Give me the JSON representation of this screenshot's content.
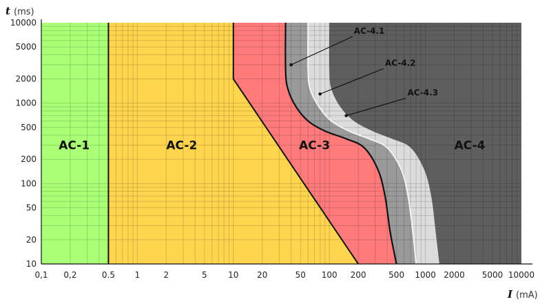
{
  "chart_data": {
    "type": "area",
    "title": "",
    "x_scale": "log",
    "y_scale": "log",
    "xlim": [
      0.1,
      10000
    ],
    "ylim": [
      10,
      10000
    ],
    "grid": true,
    "xlabel": {
      "symbol": "I",
      "unit": "(mA)"
    },
    "ylabel": {
      "symbol": "t",
      "unit": "(ms)"
    },
    "x_ticks": [
      {
        "value": 0.1,
        "label": "0,1"
      },
      {
        "value": 0.2,
        "label": "0,2"
      },
      {
        "value": 0.5,
        "label": "0.5"
      },
      {
        "value": 1,
        "label": "1"
      },
      {
        "value": 2,
        "label": "2"
      },
      {
        "value": 5,
        "label": "5"
      },
      {
        "value": 10,
        "label": "10"
      },
      {
        "value": 20,
        "label": "20"
      },
      {
        "value": 50,
        "label": "50"
      },
      {
        "value": 100,
        "label": "100"
      },
      {
        "value": 200,
        "label": "200"
      },
      {
        "value": 500,
        "label": "500"
      },
      {
        "value": 1000,
        "label": "1000"
      },
      {
        "value": 2000,
        "label": "2000"
      },
      {
        "value": 5000,
        "label": "5000"
      },
      {
        "value": 10000,
        "label": "10000"
      }
    ],
    "y_ticks": [
      {
        "value": 10,
        "label": "10"
      },
      {
        "value": 20,
        "label": "20"
      },
      {
        "value": 50,
        "label": "50"
      },
      {
        "value": 100,
        "label": "100"
      },
      {
        "value": 200,
        "label": "200"
      },
      {
        "value": 500,
        "label": "500"
      },
      {
        "value": 1000,
        "label": "1000"
      },
      {
        "value": 2000,
        "label": "2000"
      },
      {
        "value": 5000,
        "label": "5000"
      },
      {
        "value": 10000,
        "label": "10000"
      }
    ],
    "zones": [
      {
        "label": "AC-1",
        "color": "#aaff77",
        "label_at": [
          0.22,
          300
        ]
      },
      {
        "label": "AC-2",
        "color": "#ffd54f",
        "label_at": [
          2.9,
          300
        ]
      },
      {
        "label": "AC-3",
        "color": "#ff7b7b",
        "label_at": [
          70,
          300
        ]
      },
      {
        "label": "AC-4",
        "color": "#5e5e5e",
        "label_at": [
          2900,
          300
        ]
      }
    ],
    "boundaries": {
      "a": [
        [
          0.5,
          10
        ],
        [
          0.5,
          10000
        ]
      ],
      "b": [
        [
          10,
          10000
        ],
        [
          10,
          2000
        ],
        [
          200,
          10
        ]
      ],
      "c1": [
        [
          35,
          10000
        ],
        [
          35,
          2600
        ],
        [
          37,
          1500
        ],
        [
          45,
          900
        ],
        [
          60,
          600
        ],
        [
          90,
          450
        ],
        [
          150,
          360
        ],
        [
          230,
          280
        ],
        [
          320,
          150
        ],
        [
          380,
          70
        ],
        [
          430,
          25
        ],
        [
          500,
          10
        ]
      ],
      "c2": [
        [
          60,
          10000
        ],
        [
          60,
          2600
        ],
        [
          63,
          1500
        ],
        [
          78,
          900
        ],
        [
          105,
          600
        ],
        [
          160,
          450
        ],
        [
          260,
          360
        ],
        [
          400,
          280
        ],
        [
          560,
          150
        ],
        [
          660,
          70
        ],
        [
          740,
          25
        ],
        [
          800,
          10
        ]
      ],
      "c3": [
        [
          100,
          10000
        ],
        [
          100,
          2600
        ],
        [
          105,
          1500
        ],
        [
          130,
          900
        ],
        [
          180,
          600
        ],
        [
          280,
          450
        ],
        [
          450,
          360
        ],
        [
          700,
          280
        ],
        [
          970,
          150
        ],
        [
          1150,
          70
        ],
        [
          1280,
          25
        ],
        [
          1400,
          10
        ]
      ]
    },
    "curve_colors": {
      "c2": "#9a9a9a",
      "c3": "#dcdcdc",
      "c2_line": "#f2f2f2"
    },
    "annotations": [
      {
        "label": "AC-4.1",
        "point": [
          40,
          3000
        ],
        "text_at": [
          180,
          7000
        ]
      },
      {
        "label": "AC-4.2",
        "point": [
          80,
          1300
        ],
        "text_at": [
          380,
          2800
        ]
      },
      {
        "label": "AC-4.3",
        "point": [
          150,
          700
        ],
        "text_at": [
          650,
          1200
        ]
      }
    ]
  }
}
